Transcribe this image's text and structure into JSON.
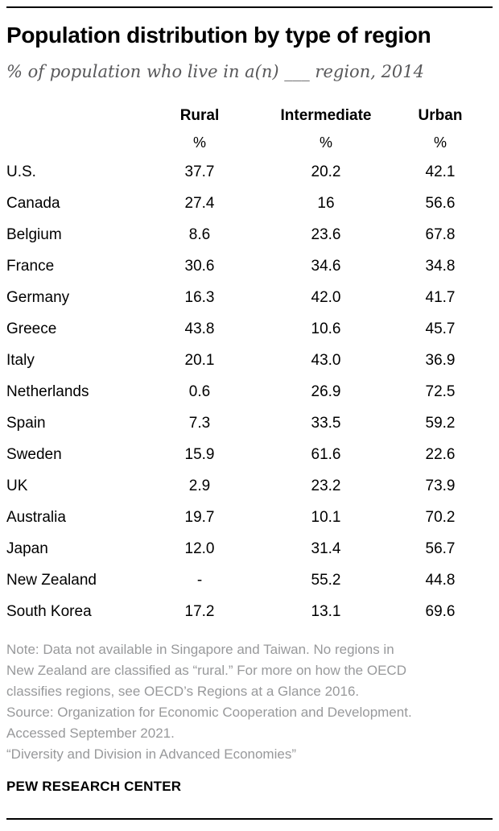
{
  "header": {
    "title": "Population distribution by type of region",
    "subtitle": "% of population who live in a(n) ___ region, 2014"
  },
  "table": {
    "columns": [
      "Rural",
      "Intermediate",
      "Urban"
    ],
    "unit_row": [
      "%",
      "%",
      "%"
    ],
    "rows": [
      {
        "country": "U.S.",
        "rural": "37.7",
        "intermediate": "20.2",
        "urban": "42.1"
      },
      {
        "country": "Canada",
        "rural": "27.4",
        "intermediate": "16",
        "urban": "56.6"
      },
      {
        "country": "Belgium",
        "rural": "8.6",
        "intermediate": "23.6",
        "urban": "67.8"
      },
      {
        "country": "France",
        "rural": "30.6",
        "intermediate": "34.6",
        "urban": "34.8"
      },
      {
        "country": "Germany",
        "rural": "16.3",
        "intermediate": "42.0",
        "urban": "41.7"
      },
      {
        "country": "Greece",
        "rural": "43.8",
        "intermediate": "10.6",
        "urban": "45.7"
      },
      {
        "country": "Italy",
        "rural": "20.1",
        "intermediate": "43.0",
        "urban": "36.9"
      },
      {
        "country": "Netherlands",
        "rural": "0.6",
        "intermediate": "26.9",
        "urban": "72.5"
      },
      {
        "country": "Spain",
        "rural": "7.3",
        "intermediate": "33.5",
        "urban": "59.2"
      },
      {
        "country": "Sweden",
        "rural": "15.9",
        "intermediate": "61.6",
        "urban": "22.6"
      },
      {
        "country": "UK",
        "rural": "2.9",
        "intermediate": "23.2",
        "urban": "73.9"
      },
      {
        "country": "Australia",
        "rural": "19.7",
        "intermediate": "10.1",
        "urban": "70.2"
      },
      {
        "country": "Japan",
        "rural": "12.0",
        "intermediate": "31.4",
        "urban": "56.7"
      },
      {
        "country": "New Zealand",
        "rural": "-",
        "intermediate": "55.2",
        "urban": "44.8"
      },
      {
        "country": "South Korea",
        "rural": "17.2",
        "intermediate": "13.1",
        "urban": "69.6"
      }
    ]
  },
  "footer": {
    "note_lines": [
      "Note: Data not available in Singapore and Taiwan. No regions in",
      "New Zealand are classified as “rural.” For more on how the OECD",
      "classifies regions, see OECD’s Regions at a Glance 2016."
    ],
    "source_lines": [
      "Source: Organization for Economic Cooperation and Development.",
      "Accessed September 2021."
    ],
    "quote": "“Diversity and Division in Advanced Economies”",
    "brand": "PEW RESEARCH CENTER"
  },
  "colors": {
    "rule": "#000000",
    "title_text": "#000000",
    "subtitle_text": "#58585a",
    "table_text": "#000000",
    "note_text": "#98999b"
  },
  "chart_data": {
    "type": "table",
    "title": "Population distribution by type of region",
    "subtitle": "% of population who live in a(n) ___ region, 2014",
    "unit": "%",
    "categories": [
      "U.S.",
      "Canada",
      "Belgium",
      "France",
      "Germany",
      "Greece",
      "Italy",
      "Netherlands",
      "Spain",
      "Sweden",
      "UK",
      "Australia",
      "Japan",
      "New Zealand",
      "South Korea"
    ],
    "series": [
      {
        "name": "Rural",
        "values": [
          37.7,
          27.4,
          8.6,
          30.6,
          16.3,
          43.8,
          20.1,
          0.6,
          7.3,
          15.9,
          2.9,
          19.7,
          12.0,
          null,
          17.2
        ]
      },
      {
        "name": "Intermediate",
        "values": [
          20.2,
          16,
          23.6,
          34.6,
          42.0,
          10.6,
          43.0,
          26.9,
          33.5,
          61.6,
          23.2,
          10.1,
          31.4,
          55.2,
          13.1
        ]
      },
      {
        "name": "Urban",
        "values": [
          42.1,
          56.6,
          67.8,
          34.8,
          41.7,
          45.7,
          36.9,
          72.5,
          59.2,
          22.6,
          73.9,
          70.2,
          56.7,
          44.8,
          69.6
        ]
      }
    ]
  }
}
